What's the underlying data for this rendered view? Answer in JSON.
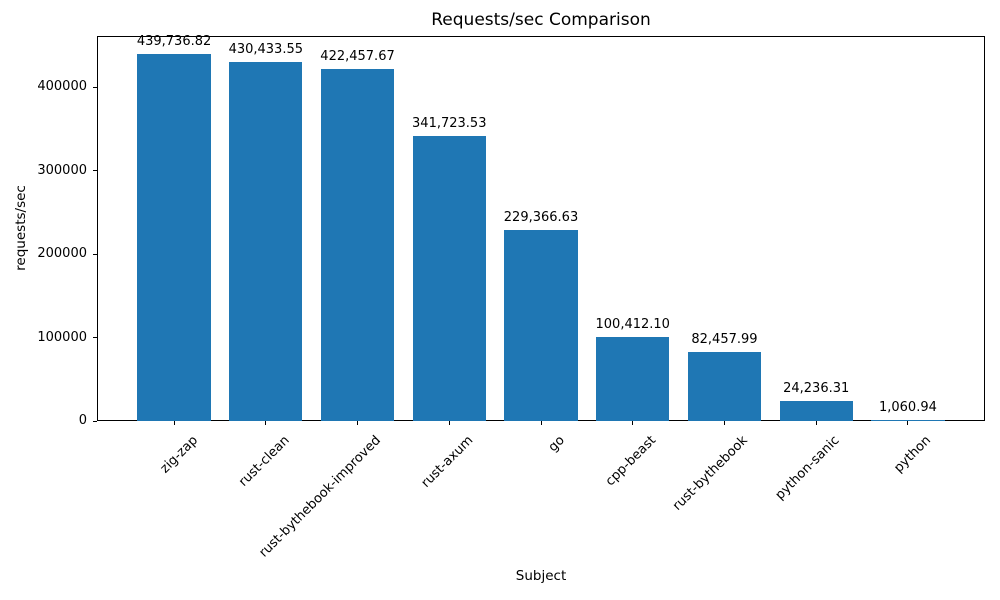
{
  "chart_data": {
    "type": "bar",
    "title": "Requests/sec Comparison",
    "xlabel": "Subject",
    "ylabel": "requests/sec",
    "categories": [
      "zig-zap",
      "rust-clean",
      "rust-bythebook-improved",
      "rust-axum",
      "go",
      "cpp-beast",
      "rust-bythebook",
      "python-sanic",
      "python"
    ],
    "values": [
      439736.82,
      430433.55,
      422457.67,
      341723.53,
      229366.63,
      100412.1,
      82457.99,
      24236.31,
      1060.94
    ],
    "value_labels": [
      "439,736.82",
      "430,433.55",
      "422,457.67",
      "341,723.53",
      "229,366.63",
      "100,412.10",
      "82,457.99",
      "24,236.31",
      "1,060.94"
    ],
    "yticks": [
      0,
      100000,
      200000,
      300000,
      400000
    ],
    "ytick_labels": [
      "0",
      "100000",
      "200000",
      "300000",
      "400000"
    ],
    "ylim": [
      0,
      461723.66
    ],
    "bar_color": "#1f77b4",
    "grid": false,
    "legend_position": "none",
    "x_tick_rotation": 45
  }
}
